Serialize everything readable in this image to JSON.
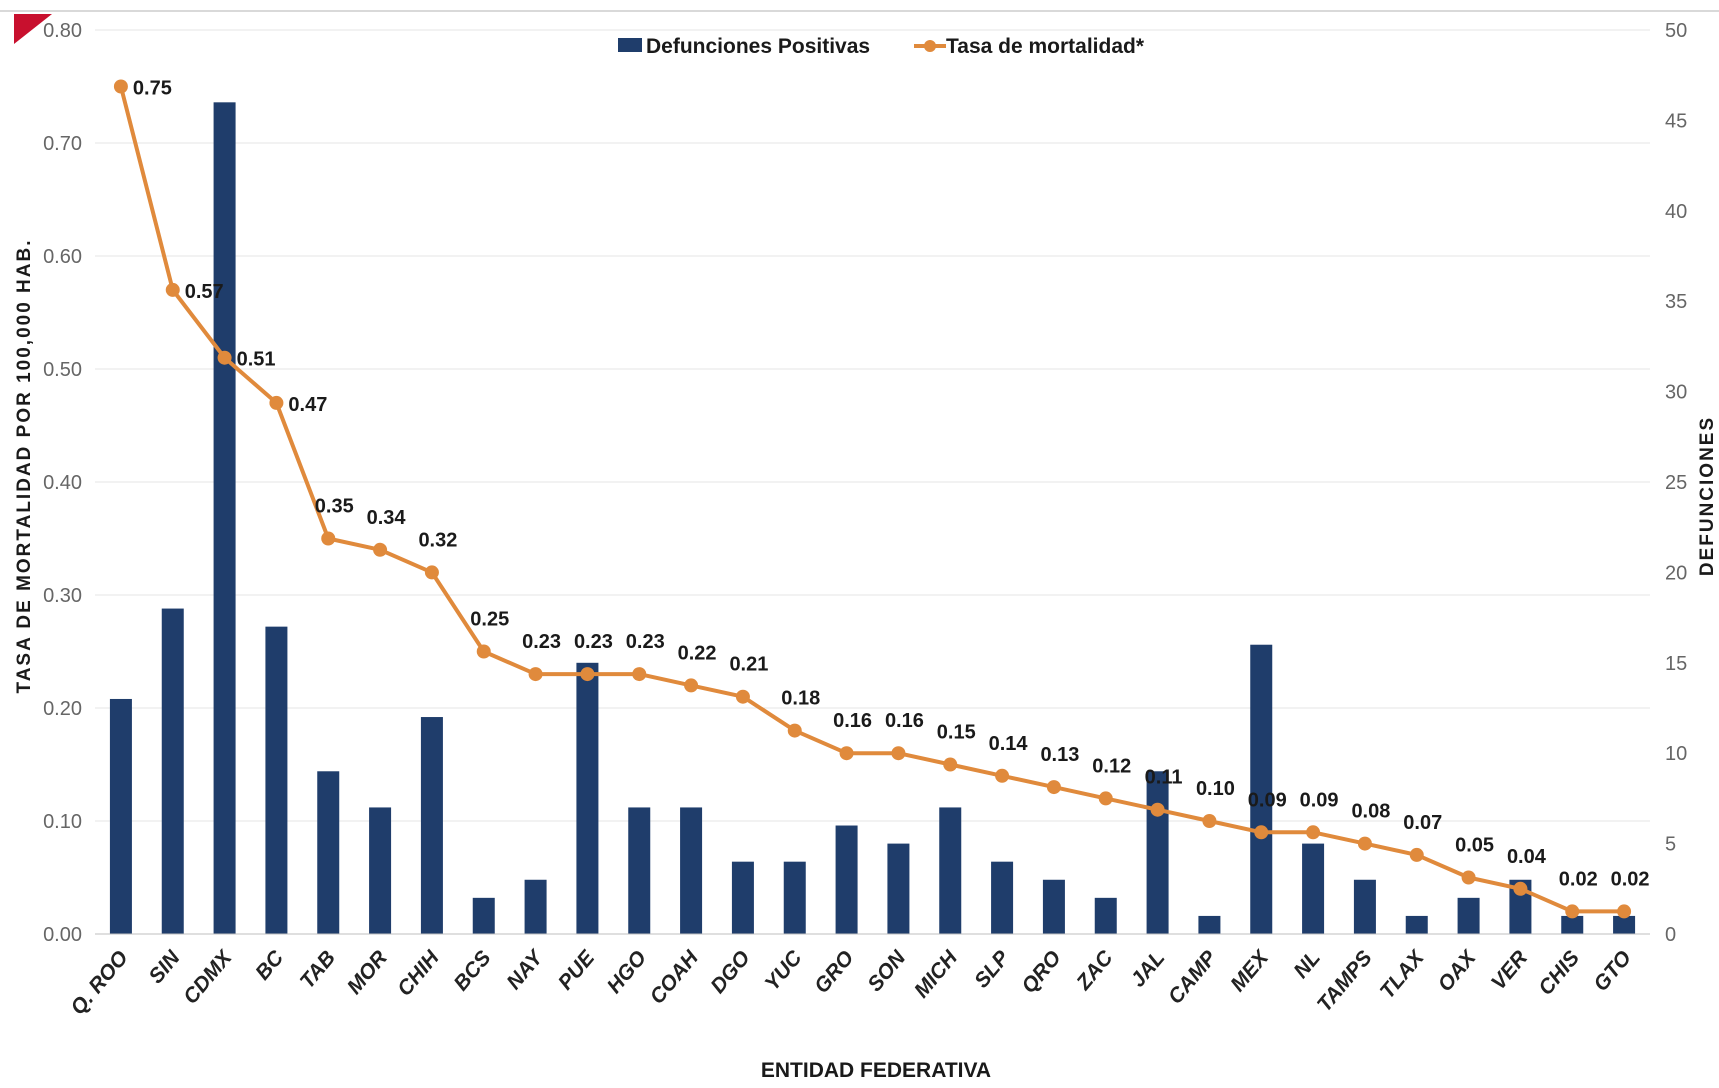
{
  "chart_data": {
    "type": "bar",
    "combo": "bar + line, dual y-axis",
    "xlabel": "ENTIDAD FEDERATIVA",
    "ylabel_left": "TASA DE  MORTALIDAD  POR 100,000 HAB.",
    "ylabel_right": "DEFUNCIONES",
    "ylim_left": [
      0,
      0.8
    ],
    "ylim_right": [
      0,
      50
    ],
    "yticks_left": [
      "0.00",
      "0.10",
      "0.20",
      "0.30",
      "0.40",
      "0.50",
      "0.60",
      "0.70",
      "0.80"
    ],
    "yticks_right": [
      "0",
      "5",
      "10",
      "15",
      "20",
      "25",
      "30",
      "35",
      "40",
      "45",
      "50"
    ],
    "grid": true,
    "legend_position": "top-center",
    "categories": [
      "Q. ROO",
      "SIN",
      "CDMX",
      "BC",
      "TAB",
      "MOR",
      "CHIH",
      "BCS",
      "NAY",
      "PUE",
      "HGO",
      "COAH",
      "DGO",
      "YUC",
      "GRO",
      "SON",
      "MICH",
      "SLP",
      "QRO",
      "ZAC",
      "JAL",
      "CAMP",
      "MEX",
      "NL",
      "TAMPS",
      "TLAX",
      "OAX",
      "VER",
      "CHIS",
      "GTO"
    ],
    "series": [
      {
        "name": "Defunciones Positivas",
        "type": "bar",
        "axis": "right",
        "color": "#1f3d6b",
        "values": [
          13,
          18,
          46,
          17,
          9,
          7,
          12,
          2,
          3,
          15,
          7,
          7,
          4,
          4,
          6,
          5,
          7,
          4,
          3,
          2,
          9,
          1,
          16,
          5,
          3,
          1,
          2,
          3,
          1,
          1
        ]
      },
      {
        "name": "Tasa de mortalidad*",
        "type": "line",
        "axis": "left",
        "color": "#e08a3c",
        "values": [
          0.75,
          0.57,
          0.51,
          0.47,
          0.35,
          0.34,
          0.32,
          0.25,
          0.23,
          0.23,
          0.23,
          0.22,
          0.21,
          0.18,
          0.16,
          0.16,
          0.15,
          0.14,
          0.13,
          0.12,
          0.11,
          0.1,
          0.09,
          0.09,
          0.08,
          0.07,
          0.05,
          0.04,
          0.02,
          0.02
        ],
        "labels": [
          "0.75",
          "0.57",
          "0.51",
          "0.47",
          "0.35",
          "0.34",
          "0.32",
          "0.25",
          "0.23",
          "0.23",
          "0.23",
          "0.22",
          "0.21",
          "0.18",
          "0.16",
          "0.16",
          "0.15",
          "0.14",
          "0.13",
          "0.12",
          "0.11",
          "0.10",
          "0.09",
          "0.09",
          "0.08",
          "0.07",
          "0.05",
          "0.04",
          "0.02",
          "0.02"
        ]
      }
    ]
  }
}
